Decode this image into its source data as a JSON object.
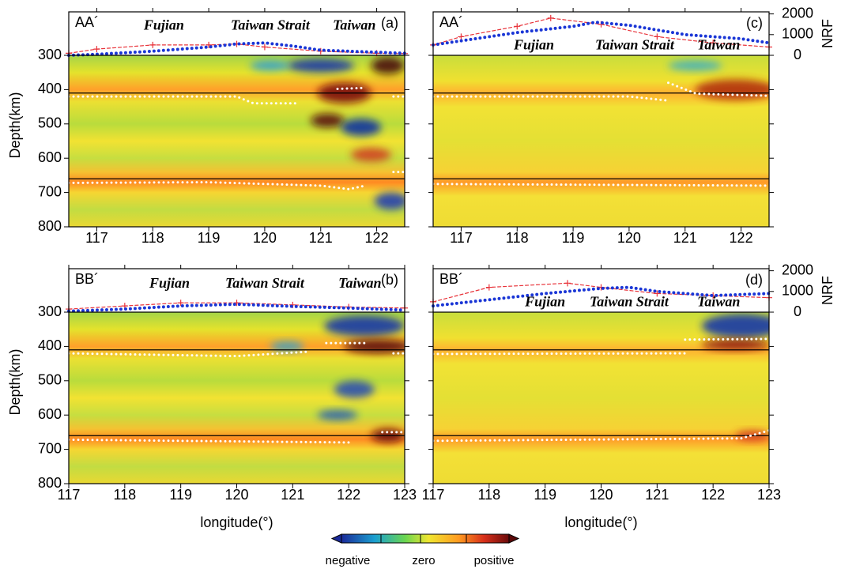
{
  "chart_data": [
    {
      "type": "section",
      "profile": "AA´",
      "panel_label": "(a)",
      "ylabel": "Depth(km)",
      "xlim": [
        116.5,
        122.5
      ],
      "xticks": [
        117,
        118,
        119,
        120,
        121,
        122
      ],
      "ylim": [
        800,
        300
      ],
      "yticks": [
        300,
        400,
        500,
        600,
        700,
        800
      ],
      "show_ytick_labels": true,
      "y2lim": [
        0,
        2100
      ],
      "interfaces": [
        410,
        660
      ],
      "annotations": [
        {
          "text": "Fujian",
          "x": 118.2,
          "y": 1400
        },
        {
          "text": "Taiwan Strait",
          "x": 120.1,
          "y": 1400
        },
        {
          "text": "Taiwan",
          "x": 121.6,
          "y": 1400
        }
      ],
      "series": [
        {
          "color": "#e8333a",
          "marker": "+",
          "axis": "y2",
          "x": [
            116.5,
            117,
            118,
            119,
            119.5,
            120,
            121,
            122,
            122.5
          ],
          "values": [
            100,
            300,
            500,
            500,
            550,
            400,
            200,
            100,
            80
          ]
        },
        {
          "color": "#1a36d6",
          "marker": "dot",
          "axis": "y2",
          "x": [
            116.5,
            117,
            118,
            119,
            119.5,
            120,
            120.5,
            121,
            122,
            122.5
          ],
          "values": [
            0,
            50,
            200,
            400,
            550,
            600,
            450,
            250,
            150,
            100
          ]
        },
        {
          "color": "#ffffff",
          "marker": "dot",
          "axis": "y",
          "x": [
            116.5,
            119.5,
            119.8,
            120.6,
            null,
            121.3,
            121.8,
            null,
            122.3,
            122.5
          ],
          "values": [
            420,
            420,
            440,
            440,
            null,
            398,
            395,
            null,
            420,
            420
          ]
        },
        {
          "color": "#ffffff",
          "marker": "dot",
          "axis": "y",
          "x": [
            116.5,
            119,
            121,
            121.5,
            121.8,
            null,
            122.3,
            122.5
          ],
          "values": [
            672,
            670,
            680,
            690,
            680,
            null,
            640,
            640
          ]
        }
      ]
    },
    {
      "type": "section",
      "profile": "AA´",
      "panel_label": "(c)",
      "y2label": "NRF",
      "xlim": [
        116.5,
        122.5
      ],
      "xticks": [
        117,
        118,
        119,
        120,
        121,
        122
      ],
      "ylim": [
        800,
        300
      ],
      "yticks": [
        300,
        400,
        500,
        600,
        700,
        800
      ],
      "show_ytick_labels": false,
      "y2lim": [
        0,
        2100
      ],
      "y2ticks": [
        0,
        1000,
        2000
      ],
      "interfaces": [
        410,
        660
      ],
      "annotations": [
        {
          "text": "Fujian",
          "x": 118.3,
          "y": 450
        },
        {
          "text": "Taiwan Strait",
          "x": 120.1,
          "y": 450
        },
        {
          "text": "Taiwan",
          "x": 121.6,
          "y": 450
        }
      ],
      "series": [
        {
          "color": "#e8333a",
          "marker": "+",
          "axis": "y2",
          "x": [
            116.5,
            117,
            118,
            118.6,
            119.5,
            120.5,
            121.5,
            122.5
          ],
          "values": [
            500,
            900,
            1400,
            1800,
            1500,
            900,
            600,
            400
          ]
        },
        {
          "color": "#1a36d6",
          "marker": "dot",
          "axis": "y2",
          "x": [
            116.5,
            117,
            118,
            119,
            119.4,
            120,
            121,
            122,
            122.5
          ],
          "values": [
            500,
            700,
            1100,
            1400,
            1600,
            1450,
            1000,
            800,
            600
          ]
        },
        {
          "color": "#ffffff",
          "marker": "dot",
          "axis": "y",
          "x": [
            116.5,
            120,
            120.7,
            null,
            120.7,
            121.2,
            122.5
          ],
          "values": [
            420,
            420,
            432,
            null,
            380,
            412,
            418
          ]
        },
        {
          "color": "#ffffff",
          "marker": "dot",
          "axis": "y",
          "x": [
            116.5,
            122.5
          ],
          "values": [
            675,
            680
          ]
        }
      ]
    },
    {
      "type": "section",
      "profile": "BB´",
      "panel_label": "(b)",
      "ylabel": "Depth(km)",
      "xlabel": "longitude(°)",
      "xlim": [
        117,
        123
      ],
      "xticks": [
        117,
        118,
        119,
        120,
        121,
        122,
        123
      ],
      "ylim": [
        800,
        300
      ],
      "yticks": [
        300,
        400,
        500,
        600,
        700,
        800
      ],
      "show_ytick_labels": true,
      "y2lim": [
        0,
        2100
      ],
      "interfaces": [
        410,
        660
      ],
      "annotations": [
        {
          "text": "Fujian",
          "x": 118.8,
          "y": 1350
        },
        {
          "text": "Taiwan Strait",
          "x": 120.5,
          "y": 1350
        },
        {
          "text": "Taiwan",
          "x": 122.2,
          "y": 1350
        }
      ],
      "series": [
        {
          "color": "#e8333a",
          "marker": "+",
          "axis": "y2",
          "x": [
            117,
            118,
            119,
            120,
            121,
            122,
            123
          ],
          "values": [
            150,
            300,
            450,
            450,
            350,
            250,
            200
          ]
        },
        {
          "color": "#1a36d6",
          "marker": "dot",
          "axis": "y2",
          "x": [
            117,
            118,
            119,
            120,
            121,
            122,
            123
          ],
          "values": [
            50,
            150,
            300,
            380,
            280,
            200,
            100
          ]
        },
        {
          "color": "#ffffff",
          "marker": "dot",
          "axis": "y",
          "x": [
            117,
            120,
            121.3,
            null,
            121.6,
            122.3,
            null,
            122.8,
            123
          ],
          "values": [
            420,
            428,
            415,
            null,
            390,
            390,
            null,
            420,
            420
          ]
        },
        {
          "color": "#ffffff",
          "marker": "dot",
          "axis": "y",
          "x": [
            117,
            122,
            null,
            122.6,
            123
          ],
          "values": [
            672,
            680,
            null,
            650,
            650
          ]
        }
      ]
    },
    {
      "type": "section",
      "profile": "BB´",
      "panel_label": "(d)",
      "y2label": "NRF",
      "xlabel": "longitude(°)",
      "xlim": [
        117,
        123
      ],
      "xticks": [
        117,
        118,
        119,
        120,
        121,
        122,
        123
      ],
      "ylim": [
        800,
        300
      ],
      "yticks": [
        300,
        400,
        500,
        600,
        700,
        800
      ],
      "show_ytick_labels": false,
      "y2lim": [
        0,
        2100
      ],
      "y2ticks": [
        0,
        1000,
        2000
      ],
      "interfaces": [
        410,
        660
      ],
      "annotations": [
        {
          "text": "Fujian",
          "x": 119,
          "y": 450
        },
        {
          "text": "Taiwan Strait",
          "x": 120.5,
          "y": 450
        },
        {
          "text": "Taiwan",
          "x": 122.1,
          "y": 450
        }
      ],
      "series": [
        {
          "color": "#e8333a",
          "marker": "+",
          "axis": "y2",
          "x": [
            117,
            118,
            119.4,
            120,
            121,
            122,
            123
          ],
          "values": [
            500,
            1200,
            1400,
            1200,
            900,
            800,
            700
          ]
        },
        {
          "color": "#1a36d6",
          "marker": "dot",
          "axis": "y2",
          "x": [
            117,
            118,
            119,
            120,
            120.5,
            121,
            122,
            123
          ],
          "values": [
            300,
            600,
            900,
            1150,
            1200,
            1000,
            800,
            900
          ]
        },
        {
          "color": "#ffffff",
          "marker": "dot",
          "axis": "y",
          "x": [
            117,
            121.5,
            null,
            121.5,
            123
          ],
          "values": [
            422,
            420,
            null,
            380,
            378
          ]
        },
        {
          "color": "#ffffff",
          "marker": "dot",
          "axis": "y",
          "x": [
            117,
            122.5,
            123
          ],
          "values": [
            675,
            668,
            645
          ]
        }
      ]
    }
  ],
  "colorbar": {
    "labels": [
      "negative",
      "zero",
      "positive"
    ]
  }
}
